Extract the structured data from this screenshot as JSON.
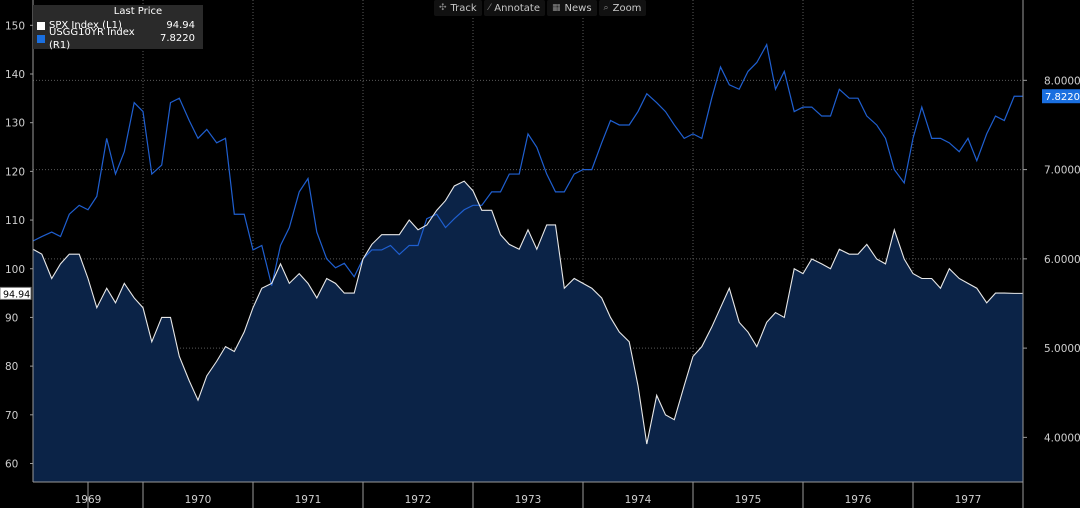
{
  "toolbar": {
    "items": [
      {
        "label": "Track",
        "icon": "crosshair-icon",
        "glyph": "✣"
      },
      {
        "label": "Annotate",
        "icon": "pencil-icon",
        "glyph": "⁄"
      },
      {
        "label": "News",
        "icon": "news-icon",
        "glyph": "▦"
      },
      {
        "label": "Zoom",
        "icon": "magnifier-icon",
        "glyph": "⌕"
      }
    ]
  },
  "legend": {
    "title": "Last Price",
    "rows": [
      {
        "name": "SPX Index  (L1)",
        "value": "94.94",
        "color": "#ffffff"
      },
      {
        "name": "USGG10YR Index  (R1)",
        "value": "7.8220",
        "color": "#1a6fe0"
      }
    ]
  },
  "chart_data": {
    "type": "line",
    "colors": {
      "spx_line": "#e8e8e8",
      "spx_fill": "#0b2347",
      "yield_line": "#1f5fd0",
      "grid": "#5a5a5a",
      "axis_text": "#cfcfcf",
      "yield_tag": "#1a6fe0"
    },
    "x_labels": [
      "1969",
      "1970",
      "1971",
      "1972",
      "1973",
      "1974",
      "1975",
      "1976",
      "1977"
    ],
    "x_range": [
      1968.5,
      1977.5
    ],
    "left_axis": {
      "ticks": [
        60,
        70,
        80,
        90,
        100,
        110,
        120,
        130,
        140,
        150
      ],
      "ylim": [
        56.2,
        155.2
      ],
      "last_tag": "94.94"
    },
    "right_axis": {
      "ticks": [
        "4.0000",
        "5.0000",
        "6.0000",
        "7.0000",
        "8.0000"
      ],
      "ylim": [
        3.5,
        8.9
      ],
      "last_tag": "7.8220"
    },
    "grid": true,
    "series": [
      {
        "name": "SPX Index  (L1)",
        "axis": "left",
        "x": [
          1968.5,
          1968.58,
          1968.67,
          1968.75,
          1968.83,
          1968.92,
          1969.0,
          1969.08,
          1969.17,
          1969.25,
          1969.33,
          1969.42,
          1969.5,
          1969.58,
          1969.67,
          1969.75,
          1969.83,
          1969.92,
          1970.0,
          1970.08,
          1970.17,
          1970.25,
          1970.33,
          1970.42,
          1970.5,
          1970.58,
          1970.67,
          1970.75,
          1970.83,
          1970.92,
          1971.0,
          1971.08,
          1971.17,
          1971.25,
          1971.33,
          1971.42,
          1971.5,
          1971.58,
          1971.67,
          1971.75,
          1971.83,
          1971.92,
          1972.0,
          1972.08,
          1972.17,
          1972.25,
          1972.33,
          1972.42,
          1972.5,
          1972.58,
          1972.67,
          1972.75,
          1972.83,
          1972.92,
          1973.0,
          1973.08,
          1973.17,
          1973.25,
          1973.33,
          1973.42,
          1973.5,
          1973.58,
          1973.67,
          1973.75,
          1973.83,
          1973.92,
          1974.0,
          1974.08,
          1974.17,
          1974.25,
          1974.33,
          1974.42,
          1974.5,
          1974.58,
          1974.67,
          1974.75,
          1974.83,
          1974.92,
          1975.0,
          1975.08,
          1975.17,
          1975.25,
          1975.33,
          1975.42,
          1975.5,
          1975.58,
          1975.67,
          1975.75,
          1975.83,
          1975.92,
          1976.0,
          1976.08,
          1976.17,
          1976.25,
          1976.33,
          1976.42,
          1976.5,
          1976.58,
          1976.67,
          1976.75,
          1976.83,
          1976.92,
          1977.0,
          1977.08,
          1977.17,
          1977.25,
          1977.33,
          1977.42,
          1977.5
        ],
        "values": [
          104,
          103,
          98,
          101,
          103,
          103,
          98,
          92,
          96,
          93,
          97,
          94,
          92,
          85,
          90,
          90,
          82,
          77,
          73,
          78,
          81,
          84,
          83,
          87,
          92,
          96,
          97,
          101,
          97,
          99,
          97,
          94,
          98,
          97,
          95,
          95,
          102,
          105,
          107,
          107,
          107,
          110,
          108,
          109,
          112,
          114,
          117,
          118,
          116,
          112,
          112,
          107,
          105,
          104,
          108,
          104,
          109,
          109,
          96,
          98,
          97,
          96,
          94,
          90,
          87,
          85,
          76,
          64,
          74,
          70,
          69,
          76,
          82,
          84,
          88,
          92,
          96,
          89,
          87,
          84,
          89,
          91,
          90,
          100,
          99,
          102,
          101,
          100,
          104,
          103,
          103,
          105,
          102,
          101,
          108,
          102,
          99,
          98,
          98,
          96,
          100,
          98,
          97,
          96,
          93,
          95,
          95,
          94.94,
          94.94
        ]
      },
      {
        "name": "USGG10YR Index  (R1)",
        "axis": "right",
        "x": [
          1968.5,
          1968.58,
          1968.67,
          1968.75,
          1968.83,
          1968.92,
          1969.0,
          1969.08,
          1969.17,
          1969.25,
          1969.33,
          1969.42,
          1969.5,
          1969.58,
          1969.67,
          1969.75,
          1969.83,
          1969.92,
          1970.0,
          1970.08,
          1970.17,
          1970.25,
          1970.33,
          1970.42,
          1970.5,
          1970.58,
          1970.67,
          1970.75,
          1970.83,
          1970.92,
          1971.0,
          1971.08,
          1971.17,
          1971.25,
          1971.33,
          1971.42,
          1971.5,
          1971.58,
          1971.67,
          1971.75,
          1971.83,
          1971.92,
          1972.0,
          1972.08,
          1972.17,
          1972.25,
          1972.33,
          1972.42,
          1972.5,
          1972.58,
          1972.67,
          1972.75,
          1972.83,
          1972.92,
          1973.0,
          1973.08,
          1973.17,
          1973.25,
          1973.33,
          1973.42,
          1973.5,
          1973.58,
          1973.67,
          1973.75,
          1973.83,
          1973.92,
          1974.0,
          1974.08,
          1974.17,
          1974.25,
          1974.33,
          1974.42,
          1974.5,
          1974.58,
          1974.67,
          1974.75,
          1974.83,
          1974.92,
          1975.0,
          1975.08,
          1975.17,
          1975.25,
          1975.33,
          1975.42,
          1975.5,
          1975.58,
          1975.67,
          1975.75,
          1975.83,
          1975.92,
          1976.0,
          1976.08,
          1976.17,
          1976.25,
          1976.33,
          1976.42,
          1976.5,
          1976.58,
          1976.67,
          1976.75,
          1976.83,
          1976.92,
          1977.0,
          1977.08,
          1977.17,
          1977.25,
          1977.33,
          1977.42,
          1977.5
        ],
        "values": [
          6.2,
          6.25,
          6.3,
          6.25,
          6.5,
          6.6,
          6.55,
          6.7,
          7.35,
          6.95,
          7.2,
          7.75,
          7.65,
          6.95,
          7.05,
          7.75,
          7.8,
          7.55,
          7.35,
          7.45,
          7.3,
          7.35,
          6.5,
          6.5,
          6.1,
          6.15,
          5.7,
          6.15,
          6.35,
          6.75,
          6.9,
          6.3,
          6.0,
          5.9,
          5.95,
          5.8,
          6.0,
          6.1,
          6.1,
          6.15,
          6.05,
          6.15,
          6.15,
          6.45,
          6.5,
          6.35,
          6.45,
          6.55,
          6.6,
          6.6,
          6.75,
          6.75,
          6.95,
          6.95,
          7.4,
          7.25,
          6.95,
          6.75,
          6.75,
          6.95,
          7.0,
          7.0,
          7.3,
          7.55,
          7.5,
          7.5,
          7.65,
          7.85,
          7.75,
          7.65,
          7.5,
          7.35,
          7.4,
          7.35,
          7.8,
          8.15,
          7.95,
          7.9,
          8.1,
          8.2,
          8.4,
          7.9,
          8.1,
          7.65,
          7.7,
          7.7,
          7.6,
          7.6,
          7.9,
          7.8,
          7.8,
          7.6,
          7.5,
          7.35,
          7.0,
          6.85,
          7.35,
          7.7,
          7.35,
          7.35,
          7.3,
          7.2,
          7.35,
          7.1,
          7.4,
          7.6,
          7.55,
          7.822,
          7.822
        ]
      }
    ]
  }
}
